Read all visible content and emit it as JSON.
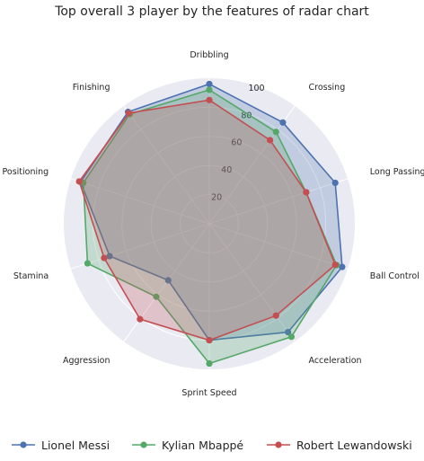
{
  "chart_data": {
    "type": "radar",
    "title": "Top overall 3 player by the features of radar chart",
    "categories": [
      "Dribbling",
      "Crossing",
      "Long Passing",
      "Ball Control",
      "Acceleration",
      "Sprint Speed",
      "Aggression",
      "Stamina",
      "Positioning",
      "Finishing"
    ],
    "rlim": [
      0,
      100
    ],
    "rticks": [
      "20",
      "40",
      "60",
      "80",
      "100"
    ],
    "grid": true,
    "legend_position": "bottom",
    "series": [
      {
        "name": "Lionel Messi",
        "color": "#4c72b0",
        "values": [
          96,
          86,
          91,
          96,
          92,
          80,
          48,
          72,
          93,
          95
        ]
      },
      {
        "name": "Kylian Mbappé",
        "color": "#55a868",
        "values": [
          92,
          78,
          70,
          92,
          96,
          96,
          62,
          88,
          91,
          93
        ]
      },
      {
        "name": "Robert Lewandowski",
        "color": "#c44e52",
        "values": [
          85,
          71,
          70,
          91,
          78,
          80,
          81,
          76,
          94,
          94
        ]
      }
    ]
  }
}
